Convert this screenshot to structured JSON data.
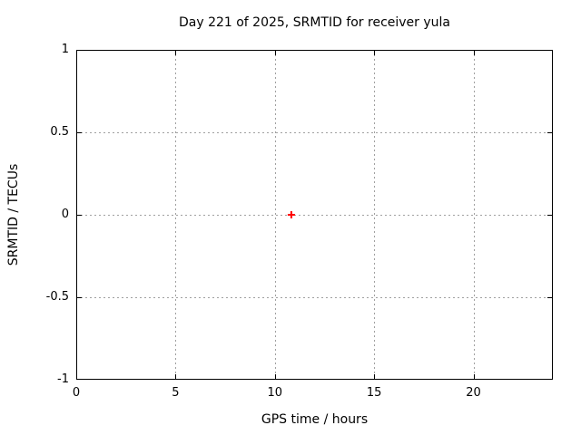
{
  "chart_data": {
    "type": "scatter",
    "title": "Day 221 of 2025, SRMTID for receiver yula",
    "xlabel": "GPS time / hours",
    "ylabel": "SRMTID / TECUs",
    "xlim": [
      0,
      24
    ],
    "ylim": [
      -1,
      1
    ],
    "xticks": [
      0,
      5,
      10,
      15,
      20
    ],
    "yticks": [
      -1,
      -0.5,
      0,
      0.5,
      1
    ],
    "grid": true,
    "legend": "none",
    "series": [
      {
        "name": "SRMTID",
        "marker": "plus",
        "color": "#ff0000",
        "points": [
          {
            "x": 10.83,
            "y": 0
          }
        ]
      }
    ],
    "colors": {
      "background": "#ffffff",
      "border": "#000000",
      "grid": "#a0a0a0",
      "text": "#000000",
      "marker": "#ff0000"
    }
  }
}
